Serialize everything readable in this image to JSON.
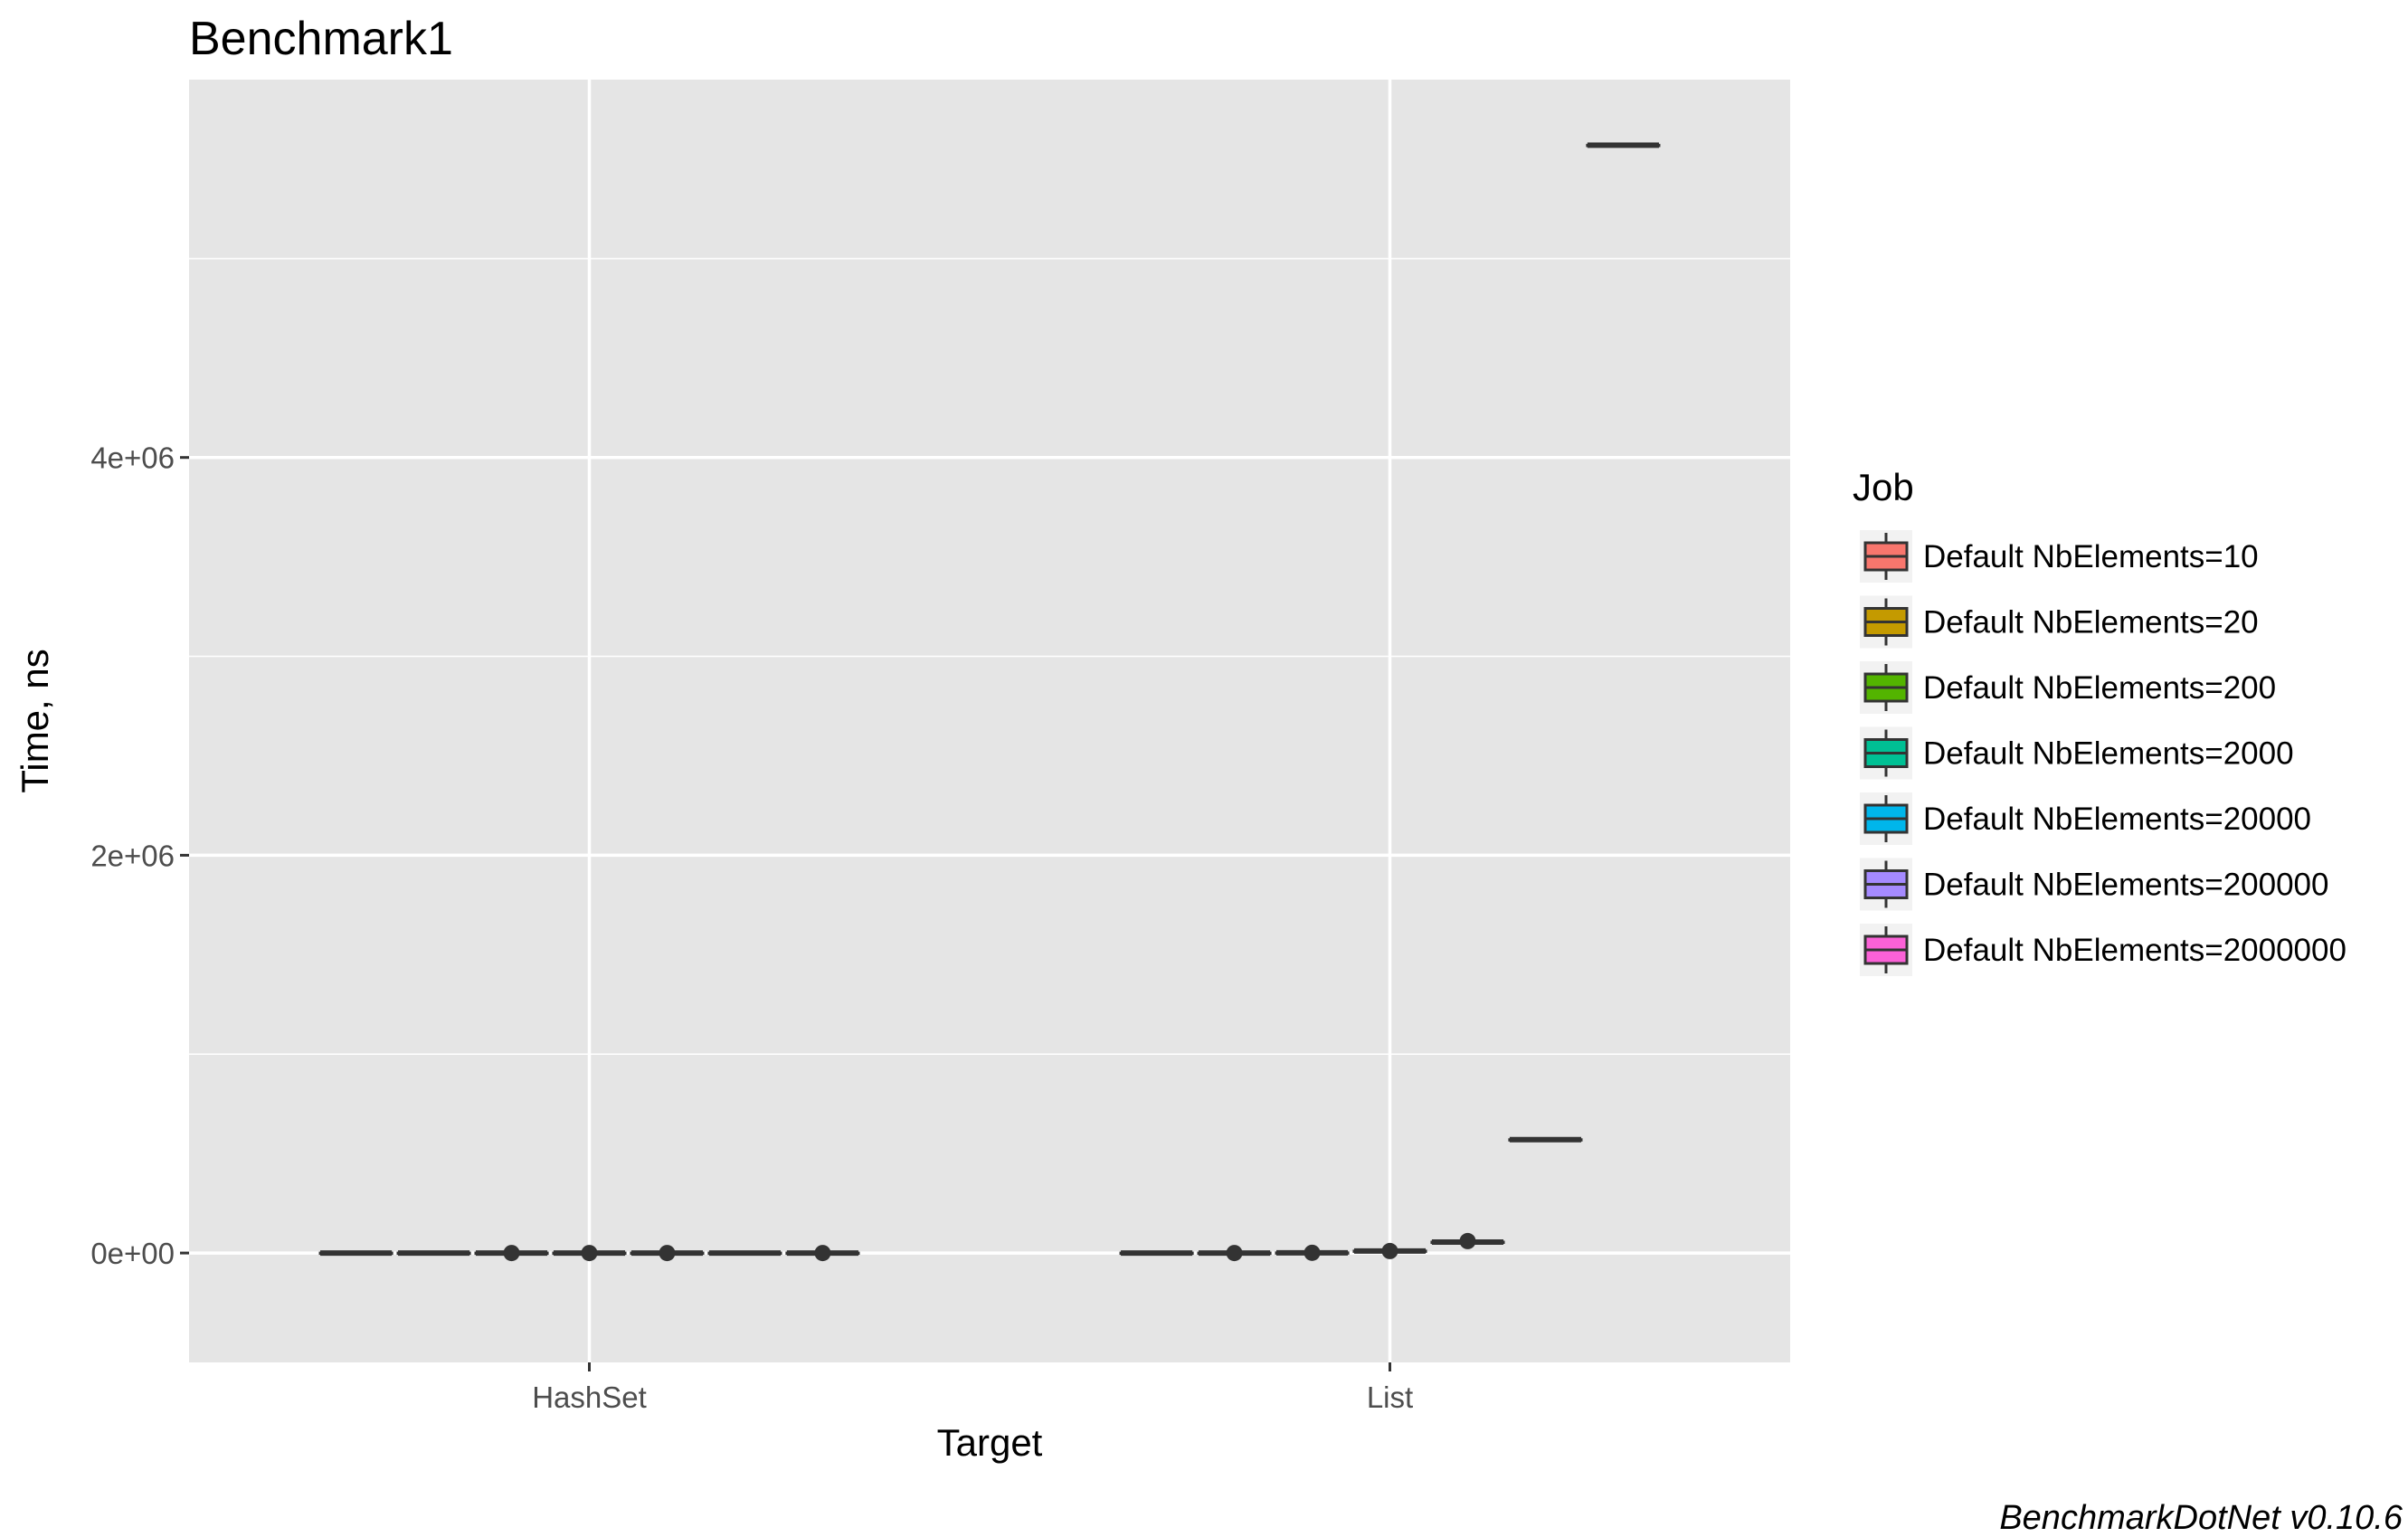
{
  "chart_data": {
    "type": "boxplot",
    "title": "Benchmark1",
    "xlabel": "Target",
    "ylabel": "Time, ns",
    "categories": [
      "HashSet",
      "List"
    ],
    "ylim": [
      -550000,
      5900000
    ],
    "yticks": [
      0,
      2000000,
      4000000
    ],
    "yticklabels": [
      "0e+00",
      "2e+06",
      "4e+06"
    ],
    "grid": true,
    "legend": {
      "title": "Job",
      "position": "right"
    },
    "series": [
      {
        "name": "Default NbElements=10",
        "color": "#F8766D",
        "values": [
          {
            "min": 0,
            "q1": 0,
            "median": 0,
            "q3": 0,
            "max": 0
          },
          {
            "min": 0,
            "q1": 0,
            "median": 0,
            "q3": 0,
            "max": 0
          }
        ],
        "outliers": [
          [],
          []
        ]
      },
      {
        "name": "Default NbElements=20",
        "color": "#C49A00",
        "values": [
          {
            "min": 0,
            "q1": 0,
            "median": 0,
            "q3": 0,
            "max": 0
          },
          {
            "min": 0,
            "q1": 0,
            "median": 0,
            "q3": 0,
            "max": 0
          }
        ],
        "outliers": [
          [],
          [
            0
          ]
        ]
      },
      {
        "name": "Default NbElements=200",
        "color": "#53B400",
        "values": [
          {
            "min": 0,
            "q1": 0,
            "median": 0,
            "q3": 0,
            "max": 0
          },
          {
            "min": 1000,
            "q1": 1000,
            "median": 1000,
            "q3": 1000,
            "max": 1000
          }
        ],
        "outliers": [
          [
            0
          ],
          [
            1000
          ]
        ]
      },
      {
        "name": "Default NbElements=2000",
        "color": "#00C094",
        "values": [
          {
            "min": 0,
            "q1": 0,
            "median": 0,
            "q3": 0,
            "max": 0
          },
          {
            "min": 10000,
            "q1": 10000,
            "median": 10000,
            "q3": 10000,
            "max": 10000
          }
        ],
        "outliers": [
          [
            0
          ],
          [
            10000
          ]
        ]
      },
      {
        "name": "Default NbElements=20000",
        "color": "#00B6EB",
        "values": [
          {
            "min": 0,
            "q1": 0,
            "median": 0,
            "q3": 0,
            "max": 0
          },
          {
            "min": 55000,
            "q1": 55000,
            "median": 55000,
            "q3": 55000,
            "max": 55000
          }
        ],
        "outliers": [
          [
            0
          ],
          [
            60000
          ]
        ]
      },
      {
        "name": "Default NbElements=200000",
        "color": "#A58AFF",
        "values": [
          {
            "min": 0,
            "q1": 0,
            "median": 0,
            "q3": 0,
            "max": 0
          },
          {
            "min": 570000,
            "q1": 570000,
            "median": 570000,
            "q3": 570000,
            "max": 570000
          }
        ],
        "outliers": [
          [],
          []
        ]
      },
      {
        "name": "Default NbElements=2000000",
        "color": "#FB61D7",
        "values": [
          {
            "min": 0,
            "q1": 0,
            "median": 0,
            "q3": 0,
            "max": 0
          },
          {
            "min": 5570000,
            "q1": 5570000,
            "median": 5570000,
            "q3": 5570000,
            "max": 5580000
          }
        ],
        "outliers": [
          [
            0
          ],
          []
        ]
      }
    ],
    "caption": "BenchmarkDotNet v0.10.6",
    "colors": {
      "panel": "#E5E5E5",
      "grid": "#FFFFFF",
      "box_line": "#333333",
      "legend_key_bg": "#F2F2F2"
    }
  }
}
